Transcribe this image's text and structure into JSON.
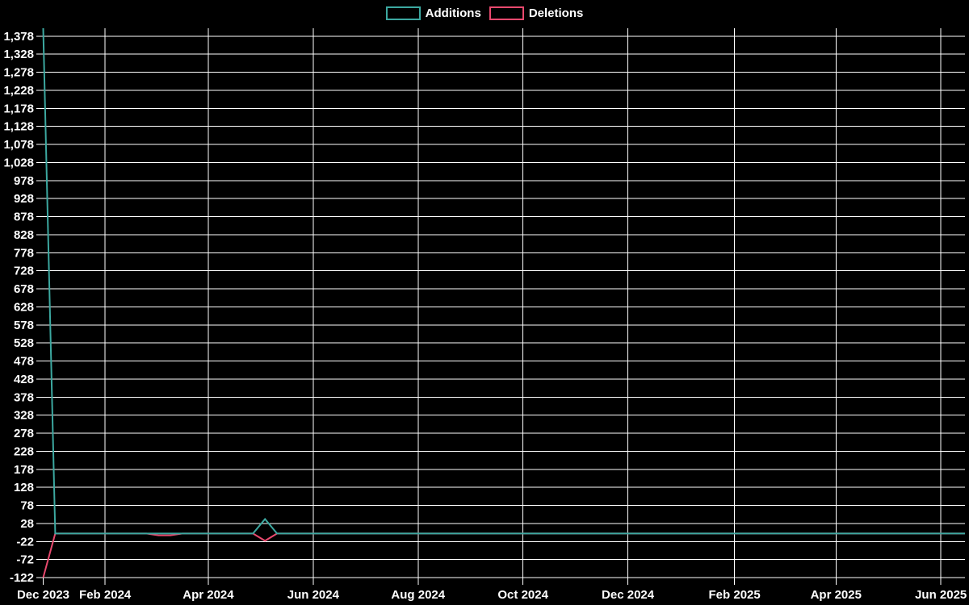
{
  "page": {
    "background": "#000000",
    "text_color": "#ffffff",
    "grid_color": "#ffffff"
  },
  "legend": {
    "position": "top-center",
    "items": [
      {
        "label": "Additions",
        "color": "#3CA8A0"
      },
      {
        "label": "Deletions",
        "color": "#E8496E"
      }
    ]
  },
  "chart_data": {
    "type": "line",
    "title": "",
    "xlabel": "",
    "ylabel": "",
    "grid": true,
    "legend_position": "top",
    "background": "#000000",
    "grid_color": "#ffffff",
    "text_color": "#ffffff",
    "x_axis": {
      "type": "time",
      "range": [
        "2023-12-27",
        "2025-06-15"
      ],
      "tick_dates": [
        "2023-12-27",
        "2024-02-01",
        "2024-04-01",
        "2024-06-01",
        "2024-08-01",
        "2024-10-01",
        "2024-12-01",
        "2025-02-01",
        "2025-04-01",
        "2025-06-01"
      ],
      "tick_labels": [
        "Dec 2023",
        "Feb 2024",
        "Apr 2024",
        "Jun 2024",
        "Aug 2024",
        "Oct 2024",
        "Dec 2024",
        "Feb 2025",
        "Apr 2025",
        "Jun 2025"
      ]
    },
    "y_axis": {
      "min": -122,
      "max": 1400,
      "tick_min": -122,
      "tick_max": 1378,
      "tick_interval": 50,
      "tick_labels": [
        "1,378",
        "1,328",
        "1,278",
        "1,228",
        "1,178",
        "1,128",
        "1,078",
        "1,028",
        "978",
        "928",
        "878",
        "828",
        "778",
        "728",
        "678",
        "628",
        "578",
        "528",
        "478",
        "428",
        "378",
        "328",
        "278",
        "228",
        "178",
        "128",
        "78",
        "28",
        "-22",
        "-72",
        "-122"
      ]
    },
    "series": [
      {
        "name": "Additions",
        "color": "#3CA8A0",
        "note": "weekly values; 0 for all weeks between listed vertices",
        "points": [
          [
            "2023-12-27",
            1400
          ],
          [
            "2024-01-03",
            0
          ],
          [
            "2024-04-27",
            0
          ],
          [
            "2024-05-04",
            40
          ],
          [
            "2024-05-11",
            0
          ],
          [
            "2025-06-15",
            0
          ]
        ]
      },
      {
        "name": "Deletions",
        "color": "#E8496E",
        "note": "weekly values; 0 for all weeks between listed vertices",
        "points": [
          [
            "2023-12-27",
            -122
          ],
          [
            "2024-01-03",
            0
          ],
          [
            "2024-02-25",
            0
          ],
          [
            "2024-03-03",
            -5
          ],
          [
            "2024-03-10",
            -5
          ],
          [
            "2024-03-17",
            0
          ],
          [
            "2024-04-27",
            0
          ],
          [
            "2024-05-04",
            -20
          ],
          [
            "2024-05-11",
            0
          ],
          [
            "2025-06-15",
            0
          ]
        ]
      }
    ]
  }
}
